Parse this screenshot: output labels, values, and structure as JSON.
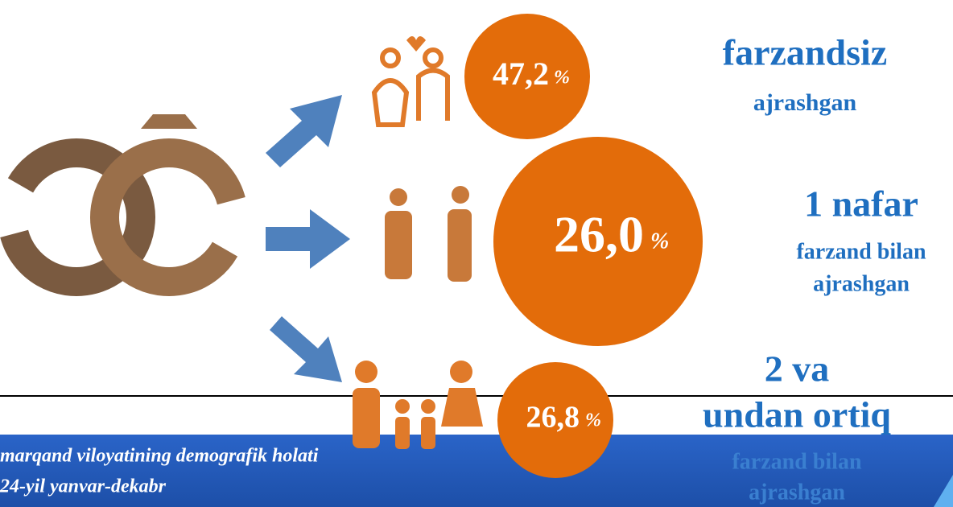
{
  "items": [
    {
      "value": "47,2",
      "unit": "%",
      "lines": [
        "farzandsiz",
        "ajrashgan"
      ]
    },
    {
      "value": "26,0",
      "unit": "%",
      "lines": [
        "1 nafar",
        "farzand bilan",
        "ajrashgan"
      ]
    },
    {
      "value": "26,8",
      "unit": "%",
      "lines": [
        "2 va",
        "undan ortiq",
        "farzand bilan",
        "ajrashgan"
      ]
    }
  ],
  "footer": {
    "lines": [
      "marqand  viloyatining demografik holati",
      "24-yil yanvar-dekabr"
    ]
  }
}
